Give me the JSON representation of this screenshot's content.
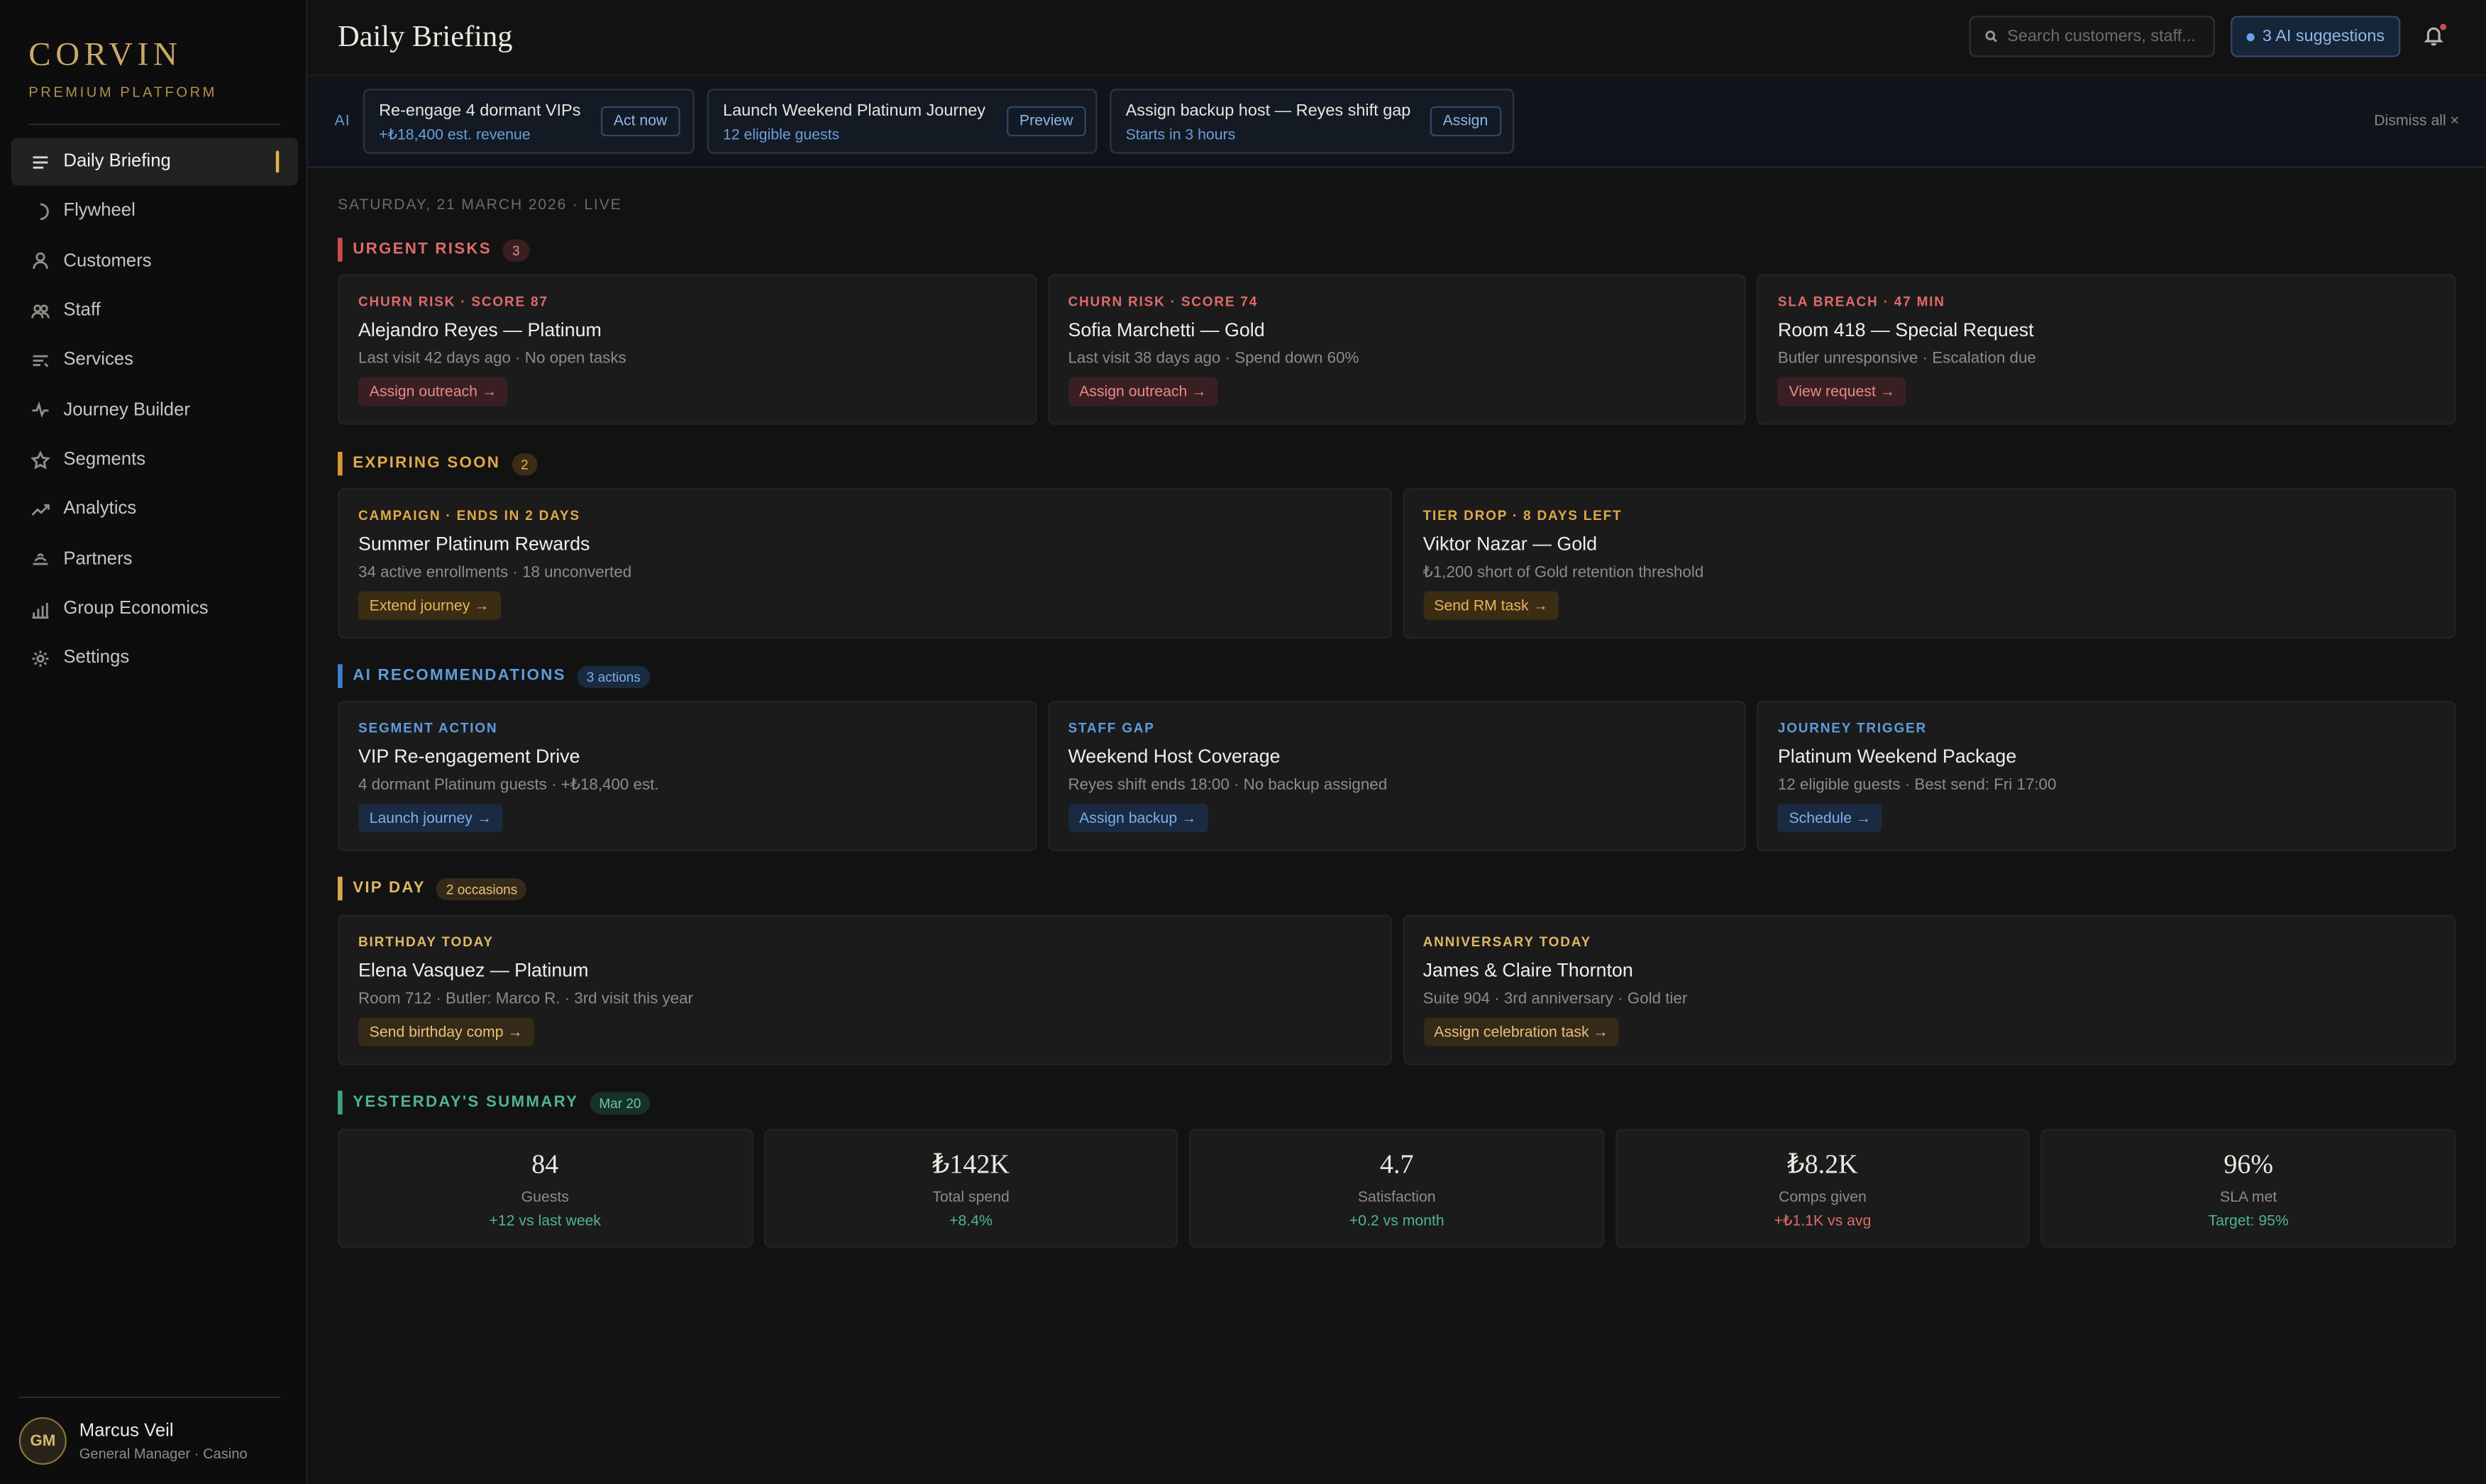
{
  "brand": {
    "name": "CORVIN",
    "subtitle": "PREMIUM PLATFORM"
  },
  "nav": [
    {
      "label": "Daily Briefing",
      "icon": "menu-lines-icon",
      "active": true
    },
    {
      "label": "Flywheel",
      "icon": "flywheel-icon"
    },
    {
      "label": "Customers",
      "icon": "user-icon"
    },
    {
      "label": "Staff",
      "icon": "users-icon"
    },
    {
      "label": "Services",
      "icon": "services-icon"
    },
    {
      "label": "Journey Builder",
      "icon": "pulse-icon"
    },
    {
      "label": "Segments",
      "icon": "star-icon"
    },
    {
      "label": "Analytics",
      "icon": "trend-icon"
    },
    {
      "label": "Partners",
      "icon": "partners-icon"
    },
    {
      "label": "Group Economics",
      "icon": "bar-chart-icon"
    },
    {
      "label": "Settings",
      "icon": "gear-icon"
    }
  ],
  "user": {
    "initials": "GM",
    "name": "Marcus Veil",
    "role": "General Manager · Casino"
  },
  "header": {
    "title": "Daily Briefing",
    "search_placeholder": "Search customers, staff...",
    "ai_suggestions": "3 AI suggestions"
  },
  "ai_bar": {
    "label": "AI",
    "dismiss": "Dismiss all ×",
    "items": [
      {
        "title": "Re-engage 4 dormant VIPs",
        "sub": "+₺18,400 est. revenue",
        "action": "Act now"
      },
      {
        "title": "Launch Weekend Platinum Journey",
        "sub": "12 eligible guests",
        "action": "Preview"
      },
      {
        "title": "Assign backup host — Reyes shift gap",
        "sub": "Starts in 3 hours",
        "action": "Assign"
      }
    ]
  },
  "date_line": "SATURDAY, 21 MARCH 2026 · LIVE",
  "sections": {
    "urgent": {
      "title": "URGENT RISKS",
      "count": "3",
      "cards": [
        {
          "kicker": "CHURN RISK · SCORE 87",
          "title": "Alejandro Reyes — Platinum",
          "desc": "Last visit 42 days ago · No open tasks",
          "action": "Assign outreach →"
        },
        {
          "kicker": "CHURN RISK · SCORE 74",
          "title": "Sofia Marchetti — Gold",
          "desc": "Last visit 38 days ago · Spend down 60%",
          "action": "Assign outreach →"
        },
        {
          "kicker": "SLA BREACH · 47 MIN",
          "title": "Room 418 — Special Request",
          "desc": "Butler unresponsive · Escalation due",
          "action": "View request →"
        }
      ]
    },
    "expiring": {
      "title": "EXPIRING SOON",
      "count": "2",
      "cards": [
        {
          "kicker": "CAMPAIGN · ENDS IN 2 DAYS",
          "title": "Summer Platinum Rewards",
          "desc": "34 active enrollments · 18 unconverted",
          "action": "Extend journey →"
        },
        {
          "kicker": "TIER DROP · 8 DAYS LEFT",
          "title": "Viktor Nazar — Gold",
          "desc": "₺1,200 short of Gold retention threshold",
          "action": "Send RM task →"
        }
      ]
    },
    "ai_recs": {
      "title": "AI RECOMMENDATIONS",
      "count": "3 actions",
      "cards": [
        {
          "kicker": "SEGMENT ACTION",
          "title": "VIP Re-engagement Drive",
          "desc": "4 dormant Platinum guests · +₺18,400 est.",
          "action": "Launch journey →"
        },
        {
          "kicker": "STAFF GAP",
          "title": "Weekend Host Coverage",
          "desc": "Reyes shift ends 18:00 · No backup assigned",
          "action": "Assign backup →"
        },
        {
          "kicker": "JOURNEY TRIGGER",
          "title": "Platinum Weekend Package",
          "desc": "12 eligible guests · Best send: Fri 17:00",
          "action": "Schedule →"
        }
      ]
    },
    "vip": {
      "title": "VIP DAY",
      "count": "2 occasions",
      "cards": [
        {
          "kicker": "BIRTHDAY TODAY",
          "title": "Elena Vasquez — Platinum",
          "desc": "Room 712 · Butler: Marco R. · 3rd visit this year",
          "action": "Send birthday comp →"
        },
        {
          "kicker": "ANNIVERSARY TODAY",
          "title": "James & Claire Thornton",
          "desc": "Suite 904 · 3rd anniversary · Gold tier",
          "action": "Assign celebration task →"
        }
      ]
    },
    "summary": {
      "title": "YESTERDAY'S SUMMARY",
      "count": "Mar 20",
      "stats": [
        {
          "value": "84",
          "label": "Guests",
          "change": "+12 vs last week",
          "tone": "pos"
        },
        {
          "value": "₺142K",
          "label": "Total spend",
          "change": "+8.4%",
          "tone": "pos"
        },
        {
          "value": "4.7",
          "label": "Satisfaction",
          "change": "+0.2 vs month",
          "tone": "pos"
        },
        {
          "value": "₺8.2K",
          "label": "Comps given",
          "change": "+₺1.1K vs avg",
          "tone": "neg"
        },
        {
          "value": "96%",
          "label": "SLA met",
          "change": "Target: 95%",
          "tone": "pos"
        }
      ]
    }
  },
  "colors": {
    "accent_gold": "#e0b54e",
    "red": "#e06a6a",
    "amber": "#e0a84a",
    "blue": "#5f9bde",
    "green": "#4fb58a"
  }
}
